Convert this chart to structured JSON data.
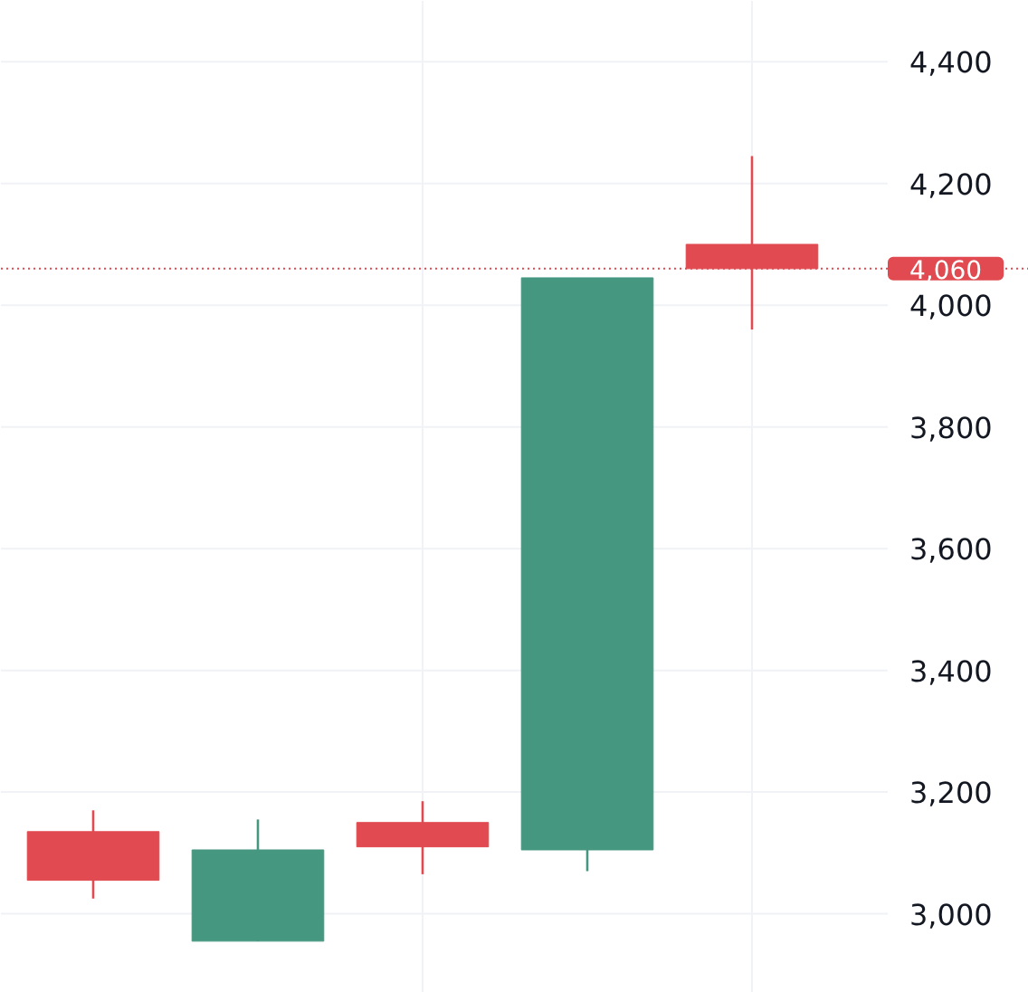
{
  "chart_data": {
    "type": "candlestick",
    "categories": [
      null,
      null,
      null,
      null,
      null
    ],
    "ohlc": [
      [
        3135,
        3170,
        3025,
        3055
      ],
      [
        2955,
        3155,
        2955,
        3105
      ],
      [
        3150,
        3185,
        3065,
        3110
      ],
      [
        3105,
        4045,
        3070,
        4045
      ],
      [
        4100,
        4245,
        3960,
        4060
      ]
    ],
    "colors": [
      "#e04a50",
      "#469780",
      "#e04a50",
      "#469780",
      "#e04a50"
    ],
    "ylim": [
      2870,
      4500
    ],
    "yticks": [
      {
        "value": 3000,
        "label": "3,000"
      },
      {
        "value": 3200,
        "label": "3,200"
      },
      {
        "value": 3400,
        "label": "3,400"
      },
      {
        "value": 3600,
        "label": "3,600"
      },
      {
        "value": 3800,
        "label": "3,800"
      },
      {
        "value": 4000,
        "label": "4,000"
      },
      {
        "value": 4200,
        "label": "4,200"
      },
      {
        "value": 4400,
        "label": "4,400"
      }
    ],
    "tick_labels": "y",
    "grid": true,
    "ref_lines": [
      {
        "axis": "y",
        "value": 4060,
        "label": "4,060",
        "color": "#e04a50",
        "line_style": "dotted"
      }
    ]
  }
}
